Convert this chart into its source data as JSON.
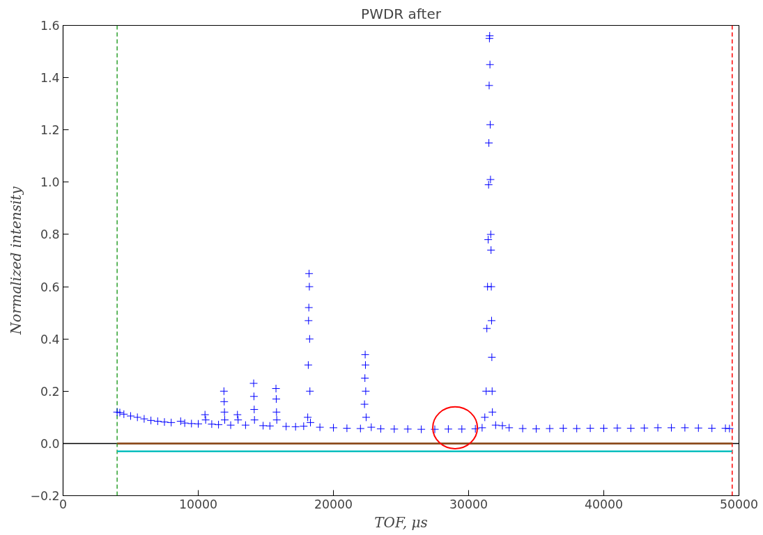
{
  "chart_data": {
    "type": "scatter",
    "title": "PWDR after",
    "xlabel": "TOF, μs",
    "ylabel": "Normalized intensity",
    "xlim": [
      0,
      50000
    ],
    "ylim": [
      -0.2,
      1.6
    ],
    "xticks": [
      0,
      10000,
      20000,
      30000,
      40000,
      50000
    ],
    "yticks": [
      {
        "value": -0.2,
        "label": "−0.2"
      },
      {
        "value": 0,
        "label": "0.0"
      },
      {
        "value": 0.2,
        "label": "0.2"
      },
      {
        "value": 0.4,
        "label": "0.4"
      },
      {
        "value": 0.6,
        "label": "0.6"
      },
      {
        "value": 0.8,
        "label": "0.8"
      },
      {
        "value": 1.0,
        "label": "1.0"
      },
      {
        "value": 1.2,
        "label": "1.2"
      },
      {
        "value": 1.4,
        "label": "1.4"
      },
      {
        "value": 1.6,
        "label": "1.6"
      }
    ],
    "grid": false,
    "series": [
      {
        "marker": "cross",
        "color": "#0000ff",
        "x": [
          4000,
          4200,
          4500,
          5000,
          5500,
          6000,
          6500,
          7000,
          7500,
          8000,
          8700,
          9000,
          9500,
          10000,
          10500,
          10550,
          11000,
          11500,
          11900,
          11920,
          11940,
          11960,
          12400,
          12900,
          12950,
          13500,
          14100,
          14120,
          14140,
          14160,
          14800,
          15300,
          15750,
          15770,
          15790,
          15810,
          16500,
          17200,
          17800,
          18100,
          18140,
          18160,
          18180,
          18200,
          18220,
          18240,
          18260,
          18300,
          19000,
          20000,
          21000,
          22000,
          22300,
          22330,
          22350,
          22370,
          22390,
          22420,
          22800,
          23500,
          24500,
          25500,
          26500,
          27500,
          28500,
          29500,
          30500,
          31000,
          31200,
          31300,
          31350,
          31400,
          31450,
          31480,
          31500,
          31520,
          31540,
          31560,
          31580,
          31600,
          31620,
          31640,
          31660,
          31680,
          31700,
          31720,
          31740,
          31760,
          32000,
          32500,
          33000,
          34000,
          35000,
          36000,
          37000,
          38000,
          39000,
          40000,
          41000,
          42000,
          43000,
          44000,
          45000,
          46000,
          47000,
          48000,
          49000,
          49300
        ],
        "values": [
          0.12,
          0.118,
          0.112,
          0.105,
          0.1,
          0.094,
          0.088,
          0.085,
          0.082,
          0.08,
          0.085,
          0.078,
          0.076,
          0.075,
          0.11,
          0.09,
          0.074,
          0.072,
          0.2,
          0.16,
          0.12,
          0.09,
          0.07,
          0.11,
          0.09,
          0.07,
          0.23,
          0.18,
          0.13,
          0.09,
          0.068,
          0.067,
          0.21,
          0.17,
          0.12,
          0.09,
          0.065,
          0.064,
          0.066,
          0.1,
          0.3,
          0.47,
          0.52,
          0.65,
          0.6,
          0.4,
          0.2,
          0.08,
          0.062,
          0.06,
          0.058,
          0.057,
          0.15,
          0.25,
          0.34,
          0.3,
          0.2,
          0.1,
          0.062,
          0.056,
          0.055,
          0.055,
          0.054,
          0.054,
          0.055,
          0.055,
          0.056,
          0.06,
          0.1,
          0.2,
          0.44,
          0.6,
          0.78,
          0.99,
          1.15,
          1.37,
          1.55,
          1.56,
          1.45,
          1.22,
          1.01,
          0.8,
          0.74,
          0.6,
          0.47,
          0.33,
          0.2,
          0.12,
          0.07,
          0.068,
          0.06,
          0.057,
          0.056,
          0.057,
          0.058,
          0.057,
          0.058,
          0.058,
          0.059,
          0.058,
          0.059,
          0.06,
          0.06,
          0.06,
          0.059,
          0.058,
          0.058,
          0.057
        ]
      },
      {
        "type": "line",
        "color": "#8b4513",
        "x": [
          4000,
          49500
        ],
        "values": [
          0,
          0
        ]
      },
      {
        "type": "line",
        "color": "#00bfbf",
        "x": [
          4000,
          49500
        ],
        "values": [
          -0.03,
          -0.03
        ]
      }
    ],
    "ref_lines": [
      {
        "axis": "y",
        "value": 0,
        "color": "#000000",
        "line_style": "solid"
      },
      {
        "axis": "x",
        "value": 4000,
        "color": "#2ca02c",
        "line_style": "dashed"
      },
      {
        "axis": "x",
        "value": 49500,
        "color": "#ff0000",
        "line_style": "dashed"
      }
    ]
  }
}
